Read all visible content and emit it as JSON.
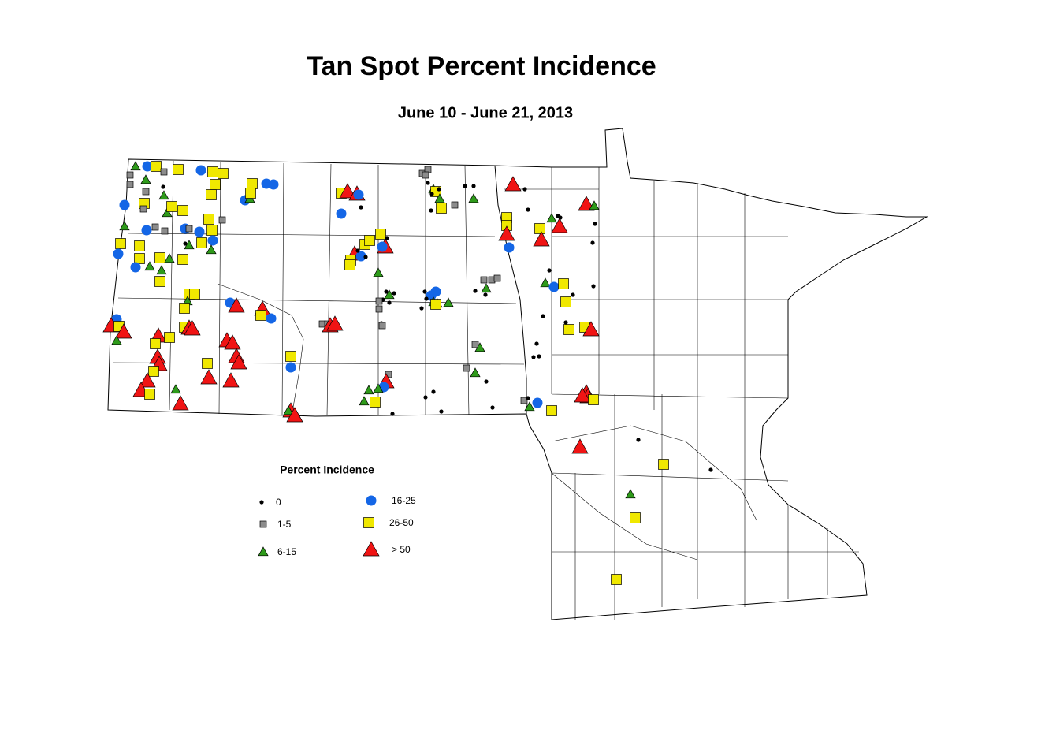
{
  "title": "Tan Spot Percent Incidence",
  "subtitle": "June 10 - June 21, 2013",
  "legend": {
    "title": "Percent Incidence",
    "items": [
      {
        "label": "0",
        "shape": "dot",
        "color": "#000000"
      },
      {
        "label": "1-5",
        "shape": "square",
        "color": "#8c8c8c"
      },
      {
        "label": "6-15",
        "shape": "triangle",
        "color": "#2e9a1a"
      },
      {
        "label": "16-25",
        "shape": "circle",
        "color": "#1466e6"
      },
      {
        "label": "26-50",
        "shape": "square",
        "color": "#f0e800"
      },
      {
        "label": "> 50",
        "shape": "triangle",
        "color": "#f01414"
      }
    ]
  }
}
